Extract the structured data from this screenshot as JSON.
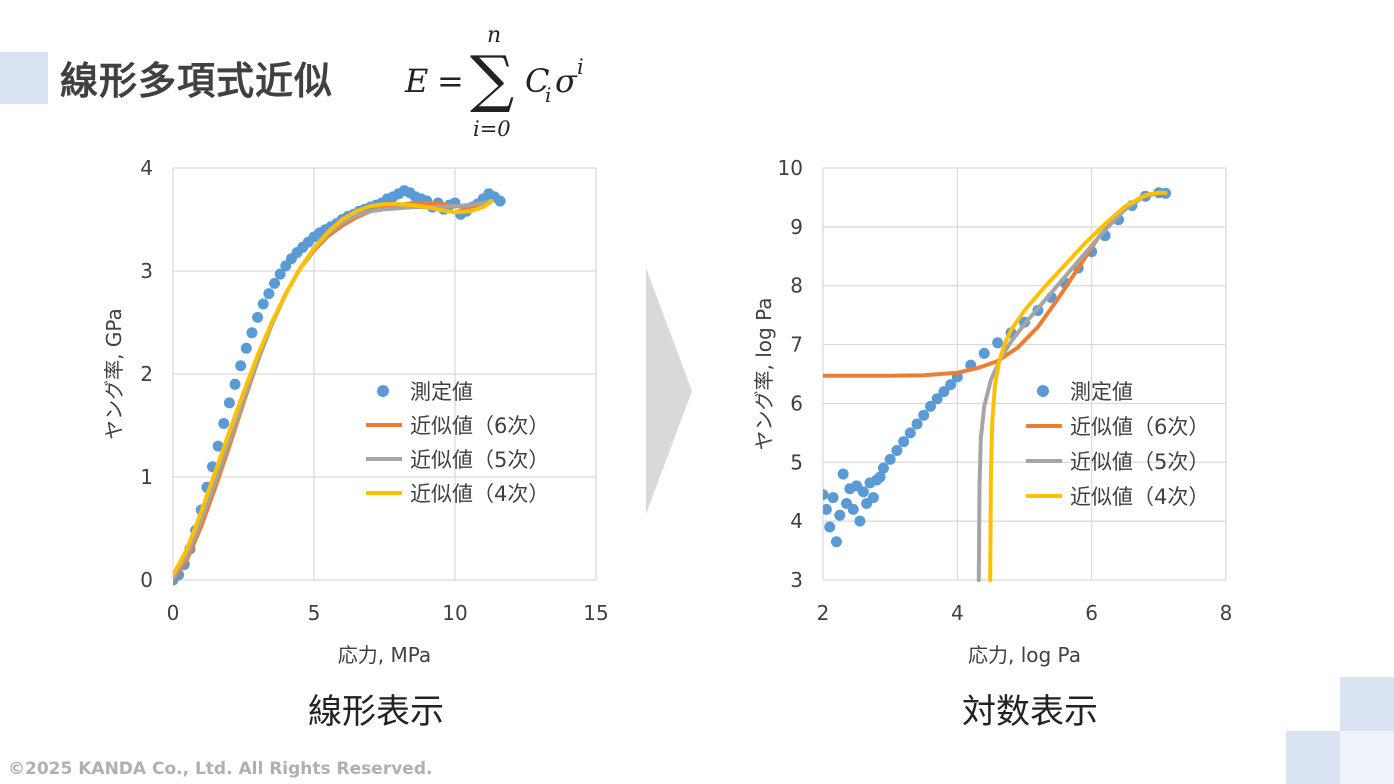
{
  "header": {
    "title": "線形多項式近似",
    "formula": {
      "lhs": "E",
      "eq": "=",
      "sigma": "∑",
      "upper": "n",
      "lower": "i=0",
      "term_c": "C",
      "term_c_sub": "i",
      "term_sigma": "σ",
      "term_sup": "i"
    }
  },
  "captions": {
    "left": "線形表示",
    "right": "対数表示"
  },
  "copyright": "©2025 KANDA Co., Ltd. All Rights Reserved.",
  "colors": {
    "measured": "#5b9bd5",
    "fit6": "#ed7d31",
    "fit5": "#a5a5a5",
    "fit4": "#ffc000",
    "grid": "#d9d9d9",
    "arrow": "#d9d9d9",
    "accent_block": "#dae3f3"
  },
  "chart_data": [
    {
      "type": "scatter",
      "title": "",
      "xlabel": "応力, MPa",
      "ylabel": "ヤング率, GPa",
      "xlim": [
        0,
        15
      ],
      "ylim": [
        0,
        4
      ],
      "xticks": [
        "0",
        "5",
        "10",
        "15"
      ],
      "yticks": [
        "0",
        "1",
        "2",
        "3",
        "4"
      ],
      "grid": true,
      "legend_position": "center-right",
      "series": [
        {
          "name": "測定値",
          "kind": "scatter",
          "color": "#5b9bd5",
          "x": [
            0,
            0.2,
            0.4,
            0.6,
            0.8,
            1.0,
            1.2,
            1.4,
            1.6,
            1.8,
            2.0,
            2.2,
            2.4,
            2.6,
            2.8,
            3.0,
            3.2,
            3.4,
            3.6,
            3.8,
            4.0,
            4.2,
            4.4,
            4.6,
            4.8,
            5.0,
            5.2,
            5.4,
            5.6,
            5.8,
            6.0,
            6.2,
            6.4,
            6.6,
            6.8,
            7.0,
            7.2,
            7.4,
            7.6,
            7.8,
            8.0,
            8.2,
            8.4,
            8.6,
            8.8,
            9.0,
            9.2,
            9.4,
            9.6,
            9.8,
            10.0,
            10.2,
            10.4,
            10.6,
            10.8,
            11.0,
            11.2,
            11.4,
            11.6
          ],
          "y": [
            0.0,
            0.05,
            0.15,
            0.3,
            0.48,
            0.68,
            0.9,
            1.1,
            1.3,
            1.52,
            1.72,
            1.9,
            2.08,
            2.25,
            2.4,
            2.55,
            2.68,
            2.78,
            2.88,
            2.97,
            3.05,
            3.12,
            3.18,
            3.23,
            3.28,
            3.33,
            3.37,
            3.4,
            3.43,
            3.46,
            3.5,
            3.53,
            3.55,
            3.58,
            3.6,
            3.62,
            3.64,
            3.66,
            3.7,
            3.72,
            3.75,
            3.78,
            3.76,
            3.72,
            3.7,
            3.68,
            3.62,
            3.66,
            3.6,
            3.64,
            3.66,
            3.55,
            3.58,
            3.62,
            3.65,
            3.7,
            3.75,
            3.72,
            3.68
          ]
        },
        {
          "name": "近似値（6次）",
          "kind": "line",
          "color": "#ed7d31",
          "x": [
            0,
            0.5,
            1.0,
            1.5,
            2.0,
            2.5,
            3.0,
            3.5,
            4.0,
            4.5,
            5.0,
            5.5,
            6.0,
            6.5,
            7.0,
            7.5,
            8.0,
            8.5,
            9.0,
            9.5,
            10.0,
            10.5,
            11.0,
            11.3
          ],
          "y": [
            0.0,
            0.2,
            0.52,
            0.9,
            1.3,
            1.72,
            2.12,
            2.48,
            2.78,
            3.02,
            3.2,
            3.34,
            3.44,
            3.52,
            3.58,
            3.62,
            3.64,
            3.66,
            3.66,
            3.65,
            3.63,
            3.62,
            3.64,
            3.68
          ]
        },
        {
          "name": "近似値（5次）",
          "kind": "line",
          "color": "#a5a5a5",
          "x": [
            0,
            0.5,
            1.0,
            1.5,
            2.0,
            2.5,
            3.0,
            3.5,
            4.0,
            4.5,
            5.0,
            5.5,
            6.0,
            6.5,
            7.0,
            7.5,
            8.0,
            8.5,
            9.0,
            9.5,
            10.0,
            10.5,
            11.0,
            11.3
          ],
          "y": [
            0.02,
            0.24,
            0.58,
            0.96,
            1.35,
            1.75,
            2.13,
            2.48,
            2.78,
            3.02,
            3.22,
            3.36,
            3.47,
            3.54,
            3.58,
            3.6,
            3.61,
            3.62,
            3.62,
            3.62,
            3.63,
            3.64,
            3.66,
            3.68
          ]
        },
        {
          "name": "近似値（4次）",
          "kind": "line",
          "color": "#ffc000",
          "x": [
            0,
            0.5,
            1.0,
            1.5,
            2.0,
            2.5,
            3.0,
            3.5,
            4.0,
            4.5,
            5.0,
            5.5,
            6.0,
            6.5,
            7.0,
            7.5,
            8.0,
            8.5,
            9.0,
            9.5,
            10.0,
            10.5,
            11.0,
            11.3
          ],
          "y": [
            0.05,
            0.3,
            0.66,
            1.05,
            1.44,
            1.82,
            2.18,
            2.5,
            2.78,
            3.02,
            3.22,
            3.38,
            3.5,
            3.58,
            3.63,
            3.65,
            3.65,
            3.64,
            3.62,
            3.59,
            3.57,
            3.58,
            3.62,
            3.68
          ]
        }
      ]
    },
    {
      "type": "scatter",
      "title": "",
      "xlabel": "応力, log Pa",
      "ylabel": "ヤング率, log Pa",
      "xlim": [
        2,
        8
      ],
      "ylim": [
        3,
        10
      ],
      "xticks": [
        "2",
        "4",
        "6",
        "8"
      ],
      "yticks": [
        "3",
        "4",
        "5",
        "6",
        "7",
        "8",
        "9",
        "10"
      ],
      "grid": true,
      "legend_position": "center-right",
      "series": [
        {
          "name": "測定値",
          "kind": "scatter",
          "color": "#5b9bd5",
          "x": [
            2.0,
            2.05,
            2.1,
            2.15,
            2.2,
            2.25,
            2.3,
            2.35,
            2.4,
            2.45,
            2.5,
            2.55,
            2.6,
            2.65,
            2.7,
            2.75,
            2.8,
            2.85,
            2.9,
            3.0,
            3.1,
            3.2,
            3.3,
            3.4,
            3.5,
            3.6,
            3.7,
            3.8,
            3.9,
            4.0,
            4.2,
            4.4,
            4.6,
            4.8,
            5.0,
            5.2,
            5.4,
            5.6,
            5.8,
            6.0,
            6.2,
            6.4,
            6.6,
            6.8,
            7.0,
            7.1
          ],
          "y": [
            4.45,
            4.2,
            3.9,
            4.4,
            3.65,
            4.1,
            4.8,
            4.3,
            4.55,
            4.2,
            4.6,
            4.0,
            4.5,
            4.3,
            4.65,
            4.4,
            4.7,
            4.75,
            4.9,
            5.05,
            5.2,
            5.35,
            5.5,
            5.65,
            5.8,
            5.95,
            6.08,
            6.2,
            6.32,
            6.45,
            6.65,
            6.85,
            7.03,
            7.2,
            7.38,
            7.58,
            7.8,
            8.05,
            8.3,
            8.58,
            8.85,
            9.12,
            9.36,
            9.52,
            9.58,
            9.57
          ]
        },
        {
          "name": "近似値（6次）",
          "kind": "line",
          "color": "#ed7d31",
          "x": [
            2.0,
            2.5,
            3.0,
            3.5,
            4.0,
            4.3,
            4.6,
            4.9,
            5.2,
            5.5,
            5.8,
            6.1,
            6.4,
            6.7,
            7.0,
            7.1
          ],
          "y": [
            6.47,
            6.47,
            6.47,
            6.48,
            6.52,
            6.6,
            6.72,
            6.95,
            7.3,
            7.78,
            8.3,
            8.82,
            9.22,
            9.48,
            9.58,
            9.57
          ]
        },
        {
          "name": "近似値（5次）",
          "kind": "line",
          "color": "#a5a5a5",
          "x": [
            4.32,
            4.33,
            4.35,
            4.4,
            4.5,
            4.65,
            4.8,
            5.0,
            5.3,
            5.6,
            5.9,
            6.2,
            6.5,
            6.8,
            7.0,
            7.1
          ],
          "y": [
            3.0,
            4.6,
            5.4,
            5.95,
            6.4,
            6.78,
            7.05,
            7.35,
            7.75,
            8.15,
            8.55,
            8.95,
            9.3,
            9.53,
            9.58,
            9.57
          ]
        },
        {
          "name": "近似値（4次）",
          "kind": "line",
          "color": "#ffc000",
          "x": [
            4.49,
            4.5,
            4.52,
            4.56,
            4.62,
            4.7,
            4.8,
            5.0,
            5.3,
            5.6,
            5.9,
            6.2,
            6.5,
            6.8,
            7.0,
            7.1
          ],
          "y": [
            3.0,
            4.8,
            5.7,
            6.3,
            6.7,
            7.0,
            7.25,
            7.58,
            7.98,
            8.35,
            8.72,
            9.05,
            9.35,
            9.54,
            9.58,
            9.58
          ]
        }
      ]
    }
  ]
}
